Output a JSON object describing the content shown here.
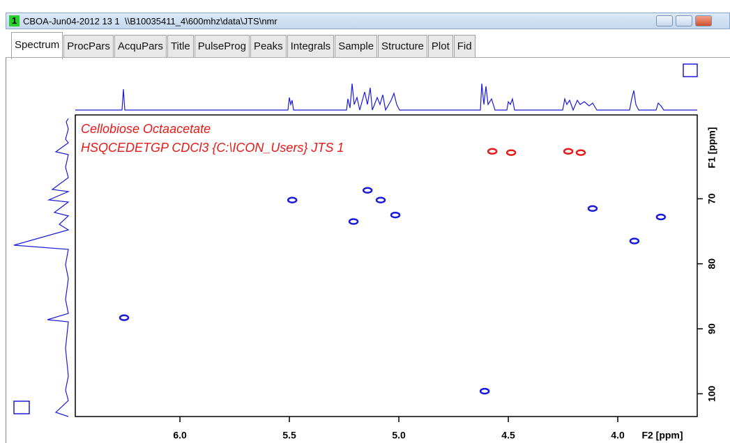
{
  "window": {
    "badge": "1",
    "title": "CBOA-Jun04-2012 13 1  \\\\B10035411_4\\600mhz\\data\\JTS\\nmr"
  },
  "tabs": [
    "Spectrum",
    "ProcPars",
    "AcquPars",
    "Title",
    "PulseProg",
    "Peaks",
    "Integrals",
    "Sample",
    "Structure",
    "Plot",
    "Fid"
  ],
  "chart_data": {
    "type": "scatter",
    "annotations": [
      "Cellobiose Octaacetate",
      "HSQCEDETGP CDCl3 {C:\\ICON_Users} JTS 1"
    ],
    "x_label": "F2 [ppm]",
    "y_label": "F1 [ppm]",
    "xlim": [
      6.478,
      3.637
    ],
    "ylim": [
      57.1,
      103.5
    ],
    "xticks": [
      {
        "value": 6,
        "label": "6.0"
      },
      {
        "value": 5.5,
        "label": "5.5"
      },
      {
        "value": 5,
        "label": "5.0"
      },
      {
        "value": 4.5,
        "label": "4.5"
      },
      {
        "value": 4,
        "label": "4.0"
      }
    ],
    "yticks": [
      70,
      80,
      90,
      100
    ],
    "series": [
      {
        "color": "#1a1adc",
        "x": [
          6.255,
          5.487,
          5.143,
          5.207,
          5.083,
          5.016,
          4.608,
          4.115,
          3.924,
          3.803
        ],
        "values": [
          88.3,
          70.2,
          68.7,
          73.5,
          70.2,
          72.5,
          99.6,
          71.5,
          76.5,
          72.8
        ]
      },
      {
        "color": "#e81818",
        "x": [
          4.573,
          4.487,
          4.226,
          4.169
        ],
        "values": [
          62.7,
          62.9,
          62.7,
          62.9
        ]
      }
    ]
  }
}
